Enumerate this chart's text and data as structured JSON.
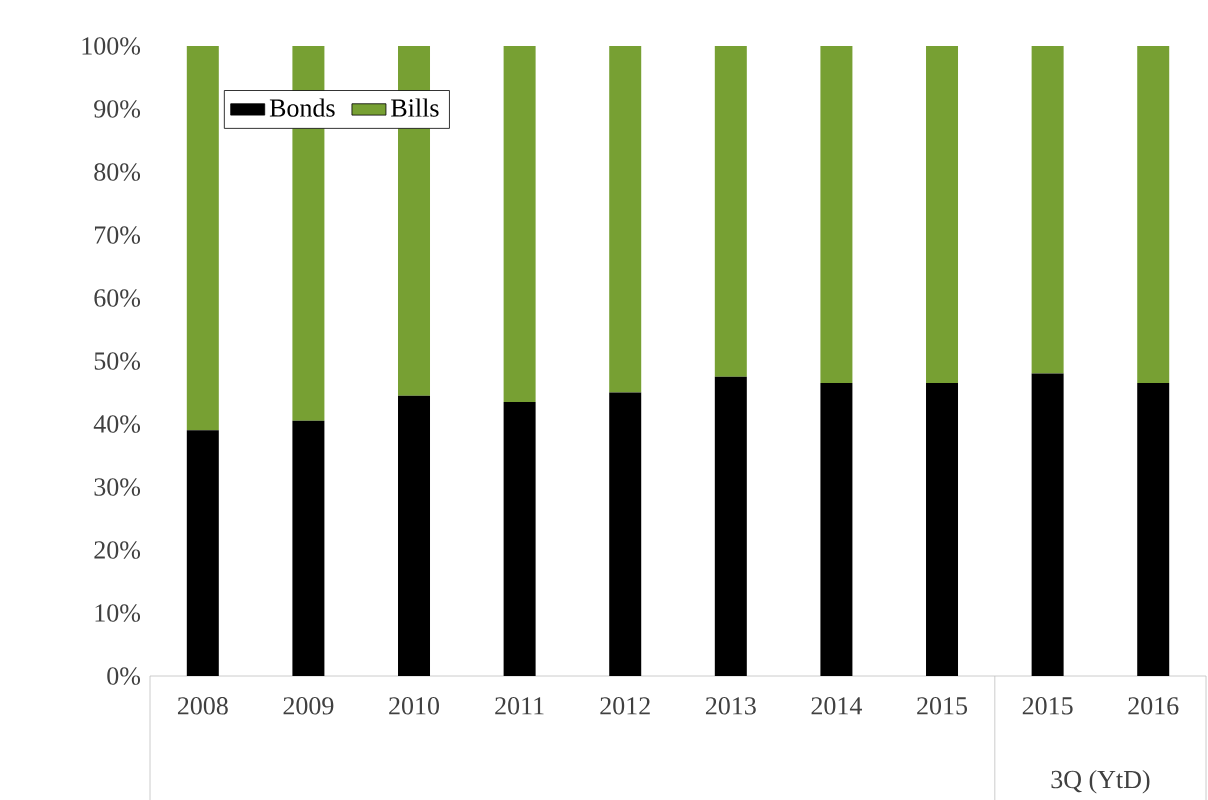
{
  "chart_data": {
    "type": "bar",
    "stacked": true,
    "categories": [
      "2008",
      "2009",
      "2010",
      "2011",
      "2012",
      "2013",
      "2014",
      "2015",
      "2015",
      "2016"
    ],
    "series": [
      {
        "name": "Bonds",
        "color": "#000000",
        "values": [
          39,
          40.5,
          44.5,
          43.5,
          45,
          47.5,
          46.5,
          46.5,
          48,
          46.5
        ]
      },
      {
        "name": "Bills",
        "color": "#77a033",
        "values": [
          61,
          59.5,
          55.5,
          56.5,
          55,
          52.5,
          53.5,
          53.5,
          52,
          53.5
        ]
      }
    ],
    "ylim": [
      0,
      100
    ],
    "yticks": [
      {
        "value": 0,
        "label": "0%"
      },
      {
        "value": 10,
        "label": "10%"
      },
      {
        "value": 20,
        "label": "20%"
      },
      {
        "value": 30,
        "label": "30%"
      },
      {
        "value": 40,
        "label": "40%"
      },
      {
        "value": 50,
        "label": "50%"
      },
      {
        "value": 60,
        "label": "60%"
      },
      {
        "value": 70,
        "label": "70%"
      },
      {
        "value": 80,
        "label": "80%"
      },
      {
        "value": 90,
        "label": "90%"
      },
      {
        "value": 100,
        "label": "100%"
      }
    ],
    "legend": "top left",
    "annotations": [
      "3Q (YtD)"
    ]
  }
}
